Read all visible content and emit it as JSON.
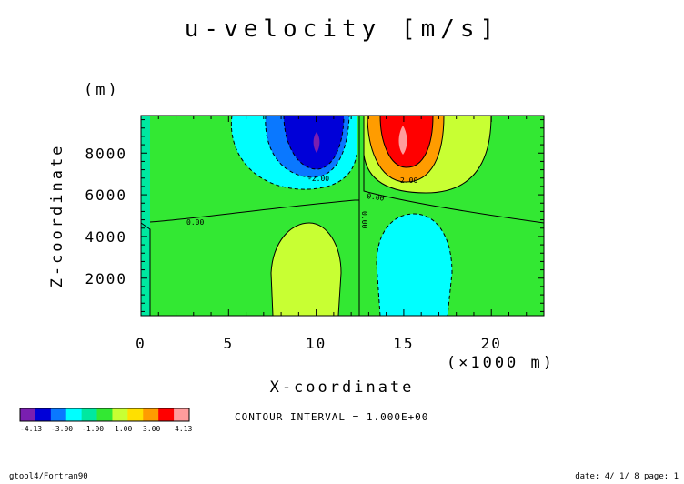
{
  "title": "u-velocity [m/s]",
  "footer_left": "gtool4/Fortran90",
  "footer_right": "date: 4/ 1/ 8 page: 1",
  "contour_interval": "CONTOUR INTERVAL = 1.000E+00",
  "chart_data": {
    "type": "contour",
    "title": "u-velocity [m/s]",
    "xlabel": "X-coordinate",
    "x_unit": "(×1000 m)",
    "ylabel": "Z-coordinate",
    "y_unit": "(m)",
    "xlim": [
      0,
      23
    ],
    "ylim": [
      200,
      9800
    ],
    "x_ticks": [
      "0",
      "5",
      "10",
      "15",
      "20"
    ],
    "x_tick_values": [
      0,
      5,
      10,
      15,
      20
    ],
    "y_ticks": [
      "2000",
      "4000",
      "6000",
      "8000"
    ],
    "y_tick_values": [
      2000,
      4000,
      6000,
      8000
    ],
    "contour_labels": [
      "0.00",
      "-2.00",
      "2.00",
      "0.00",
      "0.00"
    ],
    "colorbar": {
      "labels": [
        "-4.13",
        "-3.00",
        "-1.00",
        "1.00",
        "3.00",
        "4.13"
      ],
      "colors": [
        "#7a1fb0",
        "#0000d8",
        "#0a78ff",
        "#00ffff",
        "#00e8a0",
        "#33e833",
        "#c8ff33",
        "#ffe000",
        "#ff9c00",
        "#ff0000",
        "#ff9c9c"
      ]
    },
    "regions": [
      {
        "value": "-3.00",
        "center": [
          10,
          8400
        ],
        "color": "#0000d8"
      },
      {
        "value": "-2.00",
        "center": [
          9.8,
          7800
        ],
        "color": "#0a78ff"
      },
      {
        "value": "-1.00",
        "center": [
          7.8,
          7600
        ],
        "color": "#00ffff"
      },
      {
        "value": "3.00",
        "center": [
          15,
          8400
        ],
        "color": "#ff0000"
      },
      {
        "value": "2.00",
        "center": [
          15,
          7700
        ],
        "color": "#ff9c00"
      },
      {
        "value": "1.00",
        "center": [
          17.5,
          7400
        ],
        "color": "#c8ff33"
      },
      {
        "value": "1.00",
        "center": [
          9.5,
          2400
        ],
        "color": "#c8ff33"
      },
      {
        "value": "-1.00",
        "center": [
          15.3,
          2400
        ],
        "color": "#00ffff"
      }
    ]
  }
}
